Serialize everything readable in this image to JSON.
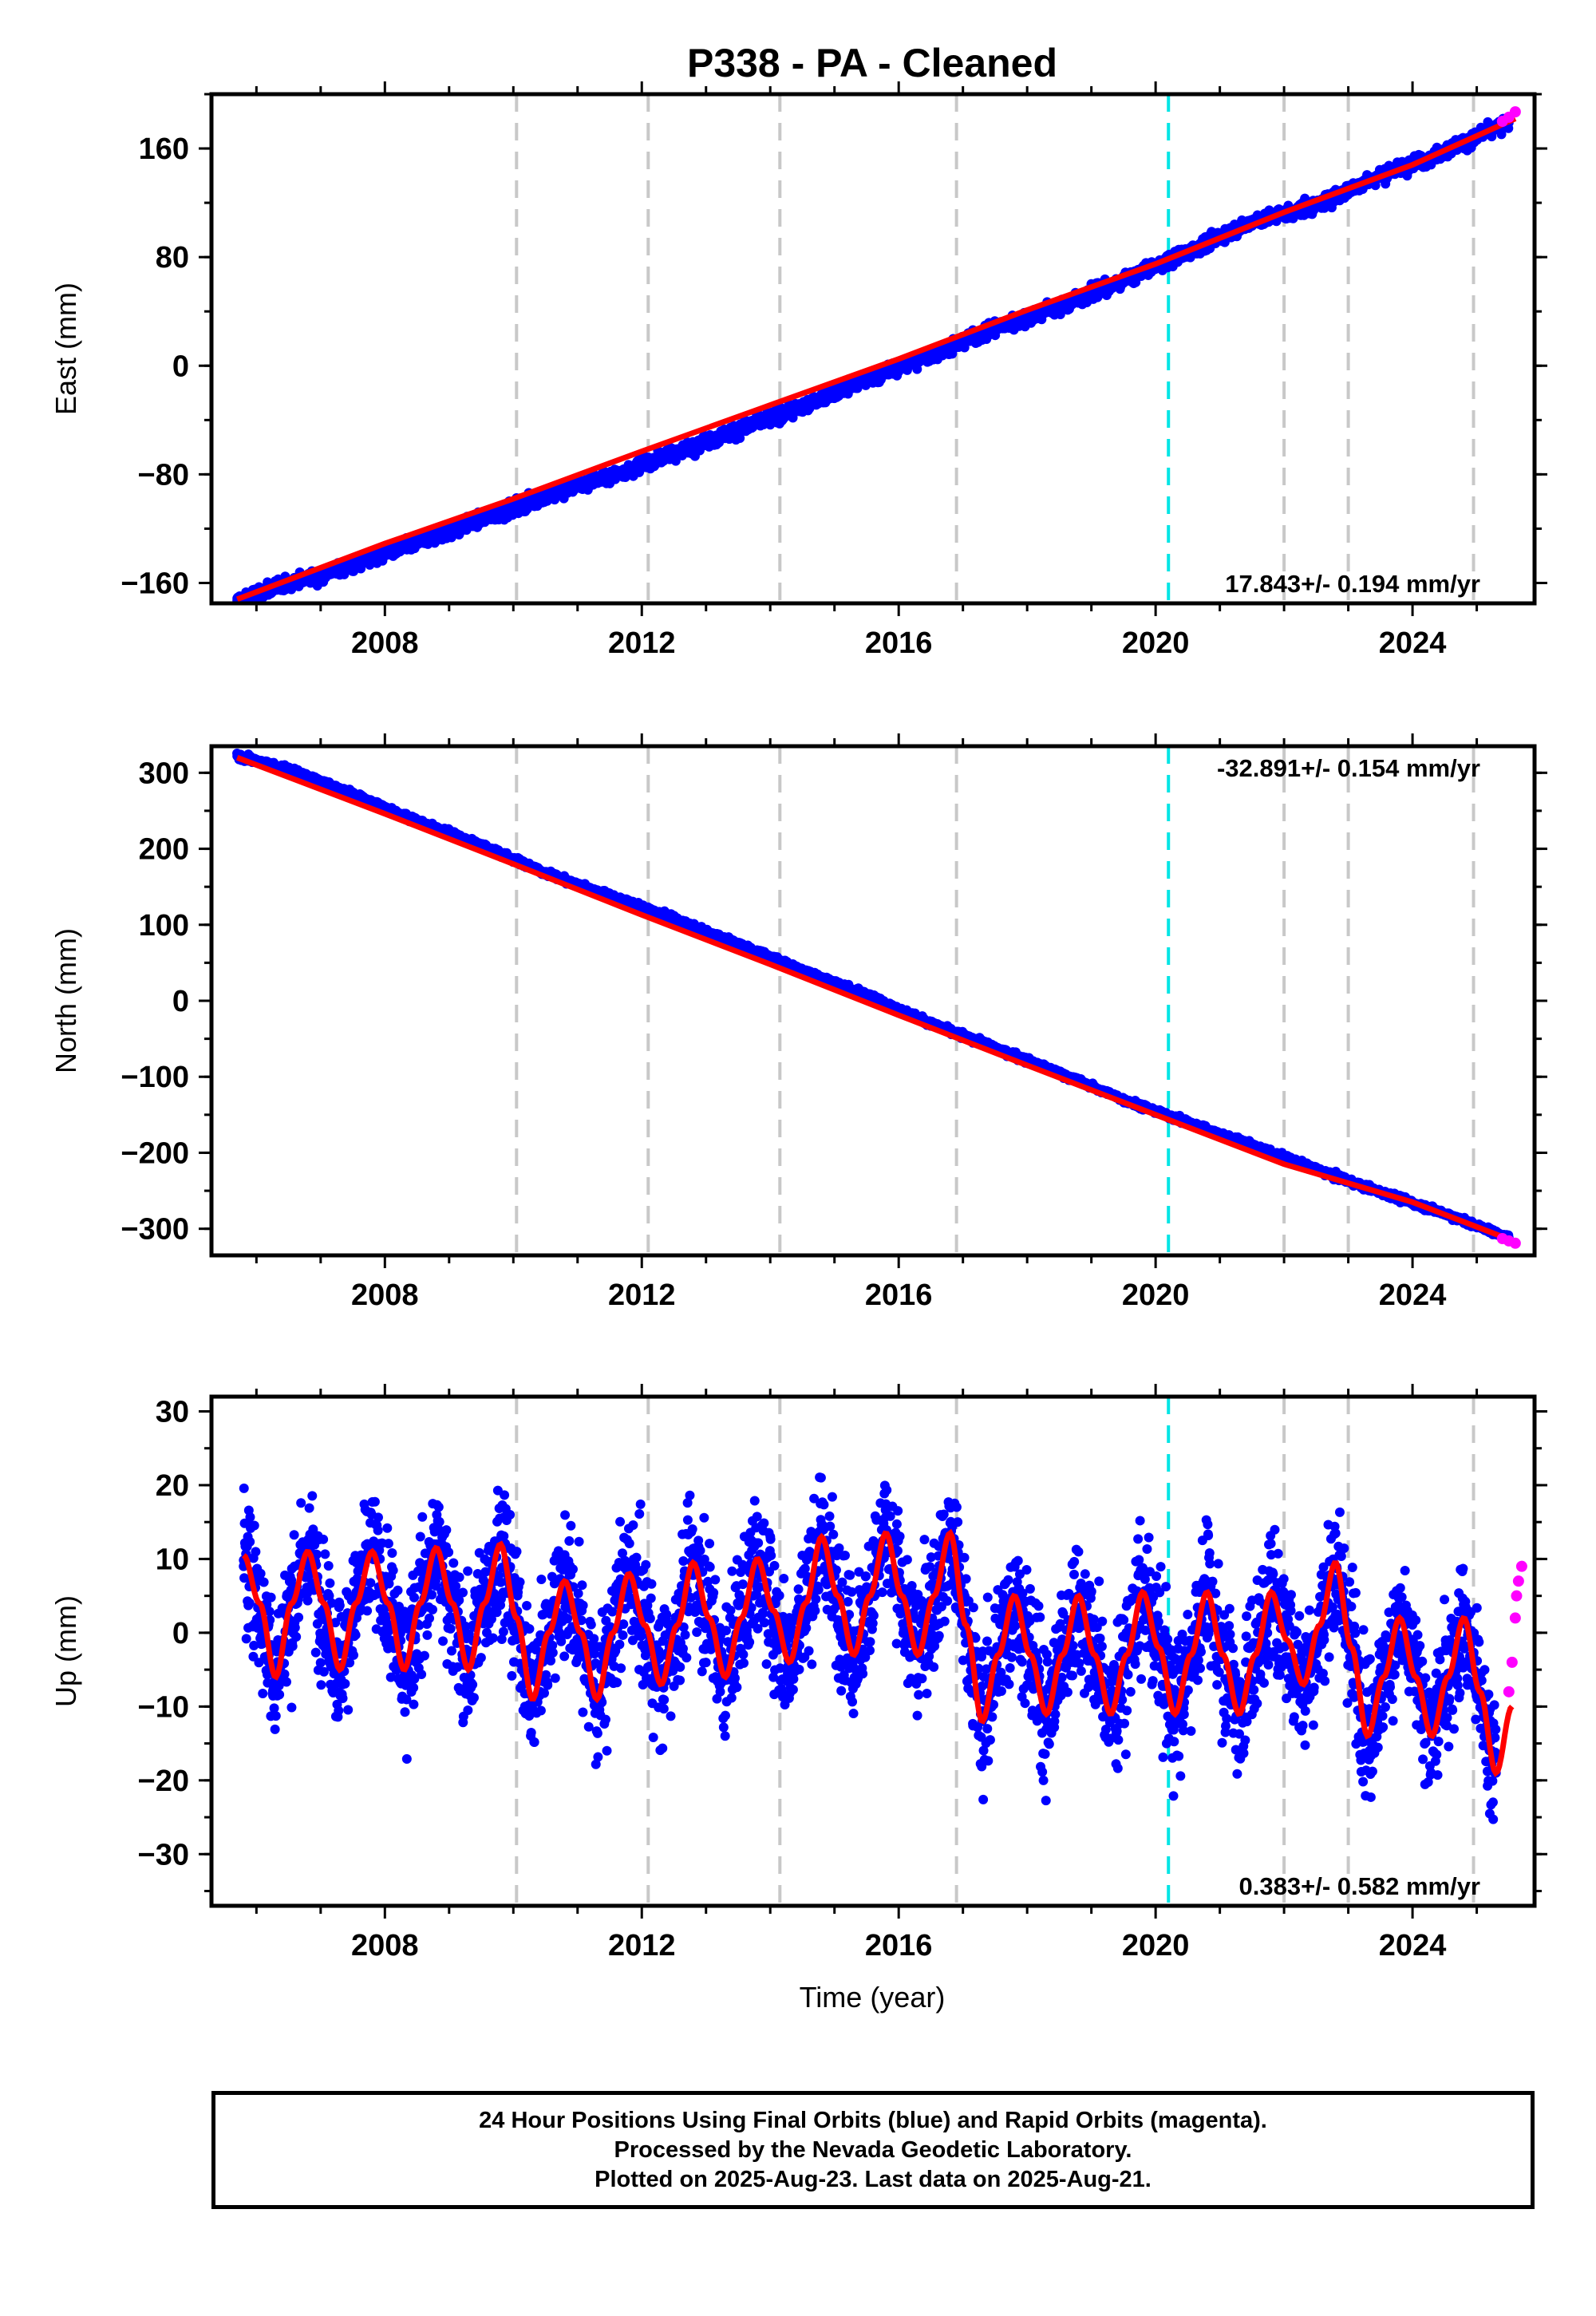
{
  "title": "P338  - PA - Cleaned",
  "footer": {
    "line1": "24 Hour Positions Using Final Orbits (blue) and Rapid Orbits (magenta).",
    "line2": "Processed by the Nevada Geodetic Laboratory.",
    "line3": "Plotted on 2025-Aug-23. Last data on 2025-Aug-21."
  },
  "colors": {
    "final_orbits": "#0000ff",
    "rapid_orbits": "#ff00ff",
    "model_fit": "#ff0000",
    "equipment_change_line": "#00e5e5",
    "event_line": "#c8c8c8"
  },
  "chart_data": [
    {
      "type": "scatter",
      "ylabel": "East (mm)",
      "xlim": [
        2005.3,
        2025.9
      ],
      "ylim": [
        -175,
        200
      ],
      "xticks": [
        2008,
        2012,
        2016,
        2020,
        2024
      ],
      "yticks": [
        -160,
        -80,
        0,
        80,
        160
      ],
      "grid": false,
      "velocity_label": "17.843+/- 0.194 mm/yr",
      "velocity_label_position": "bottom-right",
      "event_lines_gray": [
        2010.05,
        2012.1,
        2014.15,
        2016.9,
        2022.0,
        2023.0,
        2024.95
      ],
      "event_lines_cyan": [
        2020.2
      ],
      "series": [
        {
          "role": "final_orbits",
          "x": [
            2005.7,
            2006.5,
            2007.5,
            2008.5,
            2009.5,
            2010.5,
            2011.5,
            2012.5,
            2013.5,
            2014.5,
            2015.5,
            2016.5,
            2017.5,
            2018.5,
            2019.5,
            2020.5,
            2021.5,
            2022.5,
            2023.5,
            2024.5,
            2025.5
          ],
          "y": [
            -173,
            -160,
            -147,
            -130,
            -113,
            -96,
            -81,
            -64,
            -47,
            -30,
            -10,
            8,
            28,
            44,
            63,
            84,
            106,
            118,
            140,
            158,
            179
          ]
        },
        {
          "role": "rapid_orbits",
          "x": [
            2025.4,
            2025.5,
            2025.6
          ],
          "y": [
            180,
            183,
            187
          ]
        },
        {
          "role": "model_fit",
          "x": [
            2005.7,
            2008,
            2010,
            2012,
            2014,
            2016,
            2018,
            2020,
            2022,
            2024,
            2025.6
          ],
          "y": [
            -172,
            -131,
            -98,
            -63,
            -29,
            5,
            41,
            75,
            113,
            148,
            182
          ]
        }
      ]
    },
    {
      "type": "scatter",
      "ylabel": "North (mm)",
      "xlim": [
        2005.3,
        2025.9
      ],
      "ylim": [
        -335,
        335
      ],
      "xticks": [
        2008,
        2012,
        2016,
        2020,
        2024
      ],
      "yticks": [
        -300,
        -200,
        -100,
        0,
        100,
        200,
        300
      ],
      "grid": false,
      "velocity_label": "-32.891+/- 0.154 mm/yr",
      "velocity_label_position": "top-right",
      "event_lines_gray": [
        2010.05,
        2012.1,
        2014.15,
        2016.9,
        2022.0,
        2023.0,
        2024.95
      ],
      "event_lines_cyan": [
        2020.2
      ],
      "series": [
        {
          "role": "final_orbits",
          "x": [
            2005.7,
            2006.5,
            2007.5,
            2008.5,
            2009.5,
            2010.5,
            2011.5,
            2012.5,
            2013.5,
            2014.5,
            2015.5,
            2016.5,
            2017.5,
            2018.5,
            2019.5,
            2020.5,
            2021.5,
            2022.5,
            2023.5,
            2024.5,
            2025.5
          ],
          "y": [
            322,
            305,
            272,
            237,
            205,
            168,
            138,
            108,
            75,
            40,
            8,
            -30,
            -62,
            -95,
            -130,
            -160,
            -190,
            -222,
            -252,
            -280,
            -312
          ]
        },
        {
          "role": "rapid_orbits",
          "x": [
            2025.4,
            2025.5,
            2025.6
          ],
          "y": [
            -313,
            -316,
            -319
          ]
        },
        {
          "role": "model_fit",
          "x": [
            2005.7,
            2008,
            2010,
            2012,
            2014,
            2016,
            2018,
            2020,
            2022,
            2024,
            2025.6
          ],
          "y": [
            320,
            246,
            180,
            113,
            48,
            -19,
            -85,
            -150,
            -215,
            -265,
            -317
          ]
        }
      ]
    },
    {
      "type": "scatter",
      "ylabel": "Up (mm)",
      "xlabel": "Time (year)",
      "xlim": [
        2005.3,
        2025.9
      ],
      "ylim": [
        -37,
        32
      ],
      "xticks": [
        2008,
        2012,
        2016,
        2020,
        2024
      ],
      "yticks": [
        -30,
        -20,
        -10,
        0,
        10,
        20,
        30
      ],
      "grid": false,
      "velocity_label": "0.383+/- 0.582 mm/yr",
      "velocity_label_position": "bottom-right",
      "event_lines_gray": [
        2010.05,
        2012.1,
        2014.15,
        2016.9,
        2022.0,
        2023.0,
        2024.95
      ],
      "event_lines_cyan": [
        2020.2
      ],
      "series": [
        {
          "role": "final_orbits",
          "note_scatter_spread_mm": 7,
          "x": [
            2005.8,
            2006.3,
            2006.8,
            2007.3,
            2007.8,
            2008.3,
            2008.8,
            2009.3,
            2009.8,
            2010.3,
            2010.8,
            2011.3,
            2011.8,
            2012.3,
            2012.8,
            2013.3,
            2013.8,
            2014.3,
            2014.8,
            2015.3,
            2015.8,
            2016.3,
            2016.8,
            2017.3,
            2017.8,
            2018.3,
            2018.8,
            2019.3,
            2019.8,
            2020.3,
            2020.8,
            2021.3,
            2021.8,
            2022.3,
            2022.8,
            2023.3,
            2023.8,
            2024.3,
            2024.8,
            2025.3
          ],
          "y": [
            9,
            -6,
            11,
            -5,
            12,
            -5,
            12,
            -4,
            12,
            -9,
            7,
            -8,
            8,
            -6,
            10,
            -6,
            10,
            -4,
            14,
            -3,
            13,
            -3,
            13,
            -12,
            5,
            -11,
            5,
            -11,
            5,
            -11,
            6,
            -11,
            5,
            -7,
            9,
            -14,
            2,
            -14,
            2,
            -19
          ]
        },
        {
          "role": "rapid_orbits",
          "x": [
            2025.5,
            2025.55,
            2025.6,
            2025.62,
            2025.65,
            2025.7
          ],
          "y": [
            -8,
            -4,
            2,
            5,
            7,
            9
          ]
        },
        {
          "role": "model_fit",
          "x": [
            2005.8,
            2006.05,
            2006.3,
            2006.55,
            2006.8,
            2007.05,
            2007.3,
            2007.55,
            2007.8,
            2008.05,
            2008.3,
            2008.55,
            2008.8,
            2009.05,
            2009.3,
            2009.55,
            2009.8,
            2010.05,
            2010.3,
            2010.55,
            2010.8,
            2011.05,
            2011.3,
            2011.55,
            2011.8,
            2012.05,
            2012.3,
            2012.55,
            2012.8,
            2013.05,
            2013.3,
            2013.55,
            2013.8,
            2014.05,
            2014.3,
            2014.55,
            2014.8,
            2015.05,
            2015.3,
            2015.55,
            2015.8,
            2016.05,
            2016.3,
            2016.55,
            2016.8,
            2017.05,
            2017.3,
            2017.55,
            2017.8,
            2018.05,
            2018.3,
            2018.55,
            2018.8,
            2019.05,
            2019.3,
            2019.55,
            2019.8,
            2020.05,
            2020.3,
            2020.55,
            2020.8,
            2021.05,
            2021.3,
            2021.55,
            2021.8,
            2022.05,
            2022.3,
            2022.55,
            2022.8,
            2023.05,
            2023.3,
            2023.55,
            2023.8,
            2024.05,
            2024.3,
            2024.55,
            2024.8,
            2025.05,
            2025.3,
            2025.55
          ],
          "y": [
            10.5,
            4,
            -6,
            4,
            11,
            4,
            -5,
            4,
            11,
            4,
            -5,
            4,
            11.5,
            4,
            -5,
            4,
            12,
            2,
            -9,
            0,
            7,
            0,
            -9,
            0,
            8,
            1,
            -7,
            1,
            9.5,
            2,
            -6,
            2,
            10,
            3,
            -4,
            4,
            13,
            5,
            -3,
            5,
            13.5,
            5,
            -3,
            5,
            13.5,
            1,
            -12,
            -3,
            5,
            -3,
            -11,
            -3,
            5,
            -3,
            -11,
            -3,
            5.5,
            -2,
            -11,
            -3,
            5.5,
            -3,
            -11,
            -3,
            5.5,
            -1,
            -7,
            1,
            9.5,
            -2,
            -14,
            -6,
            2,
            -6,
            -14,
            -6,
            2,
            -8,
            -19,
            -10
          ]
        }
      ]
    }
  ]
}
